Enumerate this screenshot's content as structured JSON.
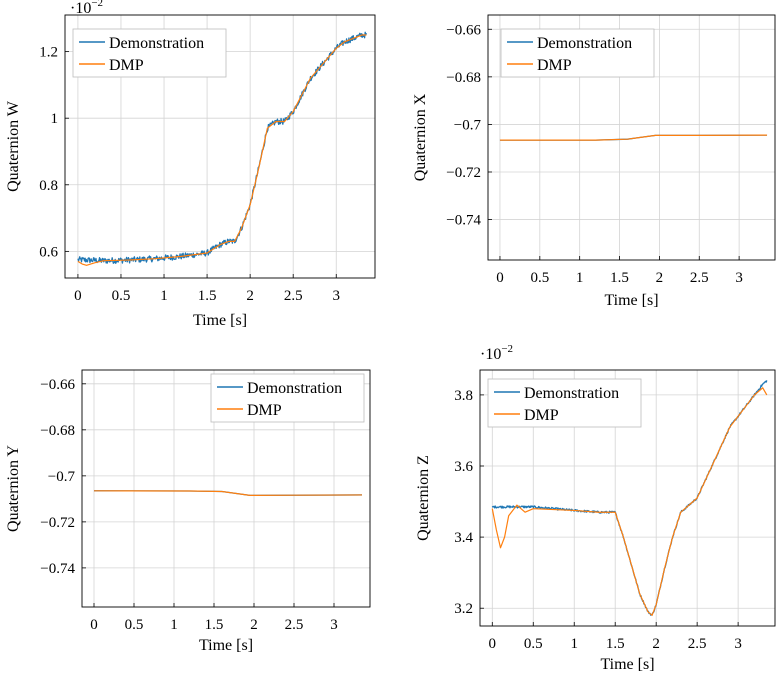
{
  "colors": {
    "demonstration": "#1f77b4",
    "dmp": "#ff7f0e",
    "grid": "#d4d4d4"
  },
  "legend": {
    "demonstration": "Demonstration",
    "dmp": "DMP"
  },
  "chart_data": [
    {
      "id": "w",
      "type": "line",
      "title": "",
      "xlabel": "Time [s]",
      "ylabel": "Quaternion W",
      "xlim": [
        -0.15,
        3.45
      ],
      "ylim": [
        0.0052,
        0.0131
      ],
      "xticks": [
        0,
        0.5,
        1,
        1.5,
        2,
        2.5,
        3
      ],
      "xtick_labels": [
        "0",
        "0.5",
        "1",
        "1.5",
        "2",
        "2.5",
        "3"
      ],
      "yticks": [
        0.006,
        0.008,
        0.01,
        0.012
      ],
      "ytick_labels": [
        "0.6",
        "0.8",
        "1",
        "1.2"
      ],
      "multiplier": {
        "base": "·10",
        "exp": "−2"
      },
      "grid": true,
      "legend_position": "top-left",
      "series": [
        {
          "name": "Demonstration",
          "noise": 9e-05,
          "x": [
            0,
            0.3,
            0.6,
            0.9,
            1.2,
            1.5,
            1.65,
            1.75,
            1.82,
            1.9,
            2.0,
            2.1,
            2.2,
            2.3,
            2.4,
            2.5,
            2.6,
            2.7,
            2.8,
            2.9,
            3.0,
            3.1,
            3.2,
            3.3,
            3.35
          ],
          "y": [
            0.00575,
            0.00572,
            0.00574,
            0.00578,
            0.00585,
            0.00595,
            0.0062,
            0.0063,
            0.0063,
            0.0067,
            0.0074,
            0.0085,
            0.0097,
            0.0099,
            0.0099,
            0.0102,
            0.0107,
            0.0112,
            0.0115,
            0.0118,
            0.0121,
            0.0123,
            0.0124,
            0.0125,
            0.0125
          ]
        },
        {
          "name": "DMP",
          "noise": 0,
          "x": [
            0,
            0.05,
            0.1,
            0.2,
            0.3,
            0.6,
            0.9,
            1.2,
            1.5,
            1.65,
            1.75,
            1.82,
            1.9,
            2.0,
            2.1,
            2.2,
            2.3,
            2.4,
            2.5,
            2.6,
            2.7,
            2.8,
            2.9,
            3.0,
            3.1,
            3.2,
            3.3,
            3.35
          ],
          "y": [
            0.0057,
            0.00562,
            0.00558,
            0.00566,
            0.00572,
            0.00574,
            0.00578,
            0.00585,
            0.00595,
            0.0062,
            0.0063,
            0.0063,
            0.0067,
            0.0074,
            0.0085,
            0.0097,
            0.0099,
            0.0099,
            0.0102,
            0.0107,
            0.0112,
            0.0115,
            0.0118,
            0.0121,
            0.0123,
            0.0124,
            0.0125,
            0.0125
          ]
        }
      ]
    },
    {
      "id": "x",
      "type": "line",
      "title": "",
      "xlabel": "Time [s]",
      "ylabel": "Quaternion X",
      "xlim": [
        -0.15,
        3.45
      ],
      "ylim": [
        -0.757,
        -0.654
      ],
      "xticks": [
        0,
        0.5,
        1,
        1.5,
        2,
        2.5,
        3
      ],
      "xtick_labels": [
        "0",
        "0.5",
        "1",
        "1.5",
        "2",
        "2.5",
        "3"
      ],
      "yticks": [
        -0.74,
        -0.72,
        -0.7,
        -0.68,
        -0.66
      ],
      "ytick_labels": [
        "−0.74",
        "−0.72",
        "−0.7",
        "−0.68",
        "−0.66"
      ],
      "grid": true,
      "legend_position": "top-left",
      "series": [
        {
          "name": "Demonstration",
          "noise": 0,
          "x": [
            0,
            1.2,
            1.6,
            1.95,
            2.5,
            3.35
          ],
          "y": [
            -0.7066,
            -0.7066,
            -0.7062,
            -0.7046,
            -0.7046,
            -0.7045
          ]
        },
        {
          "name": "DMP",
          "noise": 0,
          "x": [
            0,
            1.2,
            1.6,
            1.95,
            2.5,
            3.35
          ],
          "y": [
            -0.7066,
            -0.7066,
            -0.7062,
            -0.7046,
            -0.7046,
            -0.7045
          ]
        }
      ]
    },
    {
      "id": "y",
      "type": "line",
      "title": "",
      "xlabel": "Time [s]",
      "ylabel": "Quaternion Y",
      "xlim": [
        -0.15,
        3.45
      ],
      "ylim": [
        -0.757,
        -0.654
      ],
      "xticks": [
        0,
        0.5,
        1,
        1.5,
        2,
        2.5,
        3
      ],
      "xtick_labels": [
        "0",
        "0.5",
        "1",
        "1.5",
        "2",
        "2.5",
        "3"
      ],
      "yticks": [
        -0.74,
        -0.72,
        -0.7,
        -0.68,
        -0.66
      ],
      "ytick_labels": [
        "−0.74",
        "−0.72",
        "−0.7",
        "−0.68",
        "−0.66"
      ],
      "grid": true,
      "legend_position": "top-right",
      "series": [
        {
          "name": "Demonstration",
          "noise": 0,
          "x": [
            0,
            1.2,
            1.6,
            1.95,
            2.5,
            3.35
          ],
          "y": [
            -0.7065,
            -0.7066,
            -0.7068,
            -0.7085,
            -0.7084,
            -0.7083
          ]
        },
        {
          "name": "DMP",
          "noise": 0,
          "x": [
            0,
            1.2,
            1.6,
            1.95,
            2.5,
            3.35
          ],
          "y": [
            -0.7065,
            -0.7066,
            -0.7068,
            -0.7085,
            -0.7084,
            -0.7083
          ]
        }
      ]
    },
    {
      "id": "z",
      "type": "line",
      "title": "",
      "xlabel": "Time [s]",
      "ylabel": "Quaternion Z",
      "xlim": [
        -0.15,
        3.45
      ],
      "ylim": [
        0.0315,
        0.0387
      ],
      "xticks": [
        0,
        0.5,
        1,
        1.5,
        2,
        2.5,
        3
      ],
      "xtick_labels": [
        "0",
        "0.5",
        "1",
        "1.5",
        "2",
        "2.5",
        "3"
      ],
      "yticks": [
        0.032,
        0.034,
        0.036,
        0.038
      ],
      "ytick_labels": [
        "3.2",
        "3.4",
        "3.6",
        "3.8"
      ],
      "multiplier": {
        "base": "·10",
        "exp": "−2"
      },
      "grid": true,
      "legend_position": "top-left",
      "series": [
        {
          "name": "Demonstration",
          "noise": 3e-05,
          "x": [
            0,
            0.5,
            1.0,
            1.3,
            1.5,
            1.6,
            1.7,
            1.8,
            1.9,
            1.95,
            2.0,
            2.1,
            2.2,
            2.3,
            2.4,
            2.5,
            2.6,
            2.7,
            2.8,
            2.9,
            3.0,
            3.1,
            3.2,
            3.3,
            3.35
          ],
          "y": [
            0.03485,
            0.03485,
            0.03475,
            0.0347,
            0.0347,
            0.034,
            0.0332,
            0.0324,
            0.0319,
            0.0318,
            0.0321,
            0.0331,
            0.034,
            0.0347,
            0.0349,
            0.0351,
            0.0356,
            0.0361,
            0.0366,
            0.0371,
            0.0374,
            0.0377,
            0.038,
            0.0383,
            0.0384
          ]
        },
        {
          "name": "DMP",
          "noise": 0,
          "x": [
            0,
            0.05,
            0.1,
            0.15,
            0.2,
            0.3,
            0.4,
            0.5,
            1.0,
            1.3,
            1.5,
            1.6,
            1.7,
            1.8,
            1.9,
            1.95,
            2.0,
            2.1,
            2.2,
            2.3,
            2.4,
            2.5,
            2.6,
            2.7,
            2.8,
            2.9,
            3.0,
            3.1,
            3.2,
            3.3,
            3.35
          ],
          "y": [
            0.0348,
            0.0342,
            0.0337,
            0.034,
            0.0346,
            0.0349,
            0.0347,
            0.0348,
            0.03475,
            0.0347,
            0.0347,
            0.034,
            0.0332,
            0.0324,
            0.0319,
            0.0318,
            0.0321,
            0.0331,
            0.034,
            0.0347,
            0.0349,
            0.0351,
            0.0356,
            0.0361,
            0.0366,
            0.0371,
            0.0374,
            0.0377,
            0.038,
            0.0382,
            0.038
          ]
        }
      ]
    }
  ]
}
